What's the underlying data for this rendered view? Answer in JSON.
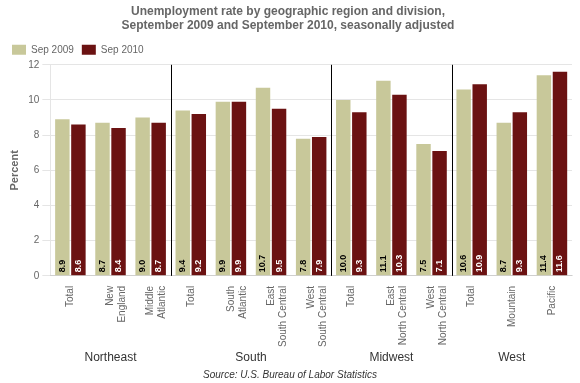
{
  "chart_data": {
    "type": "bar",
    "title": "Unemployment rate by geographic region and division,\nSeptember 2009 and September 2010, seasonally adjusted",
    "categories": [
      "Total",
      "New\nEngland",
      "Middle\nAtlantic",
      "Total",
      "South\nAtlantic",
      "East\nSouth Central",
      "West\nSouth Central",
      "Total",
      "East\nNorth Central",
      "West\nNorth Central",
      "Total",
      "Mountain",
      "Pacific"
    ],
    "series": [
      {
        "name": "Sep 2009",
        "color": "#C8C89A",
        "values": [
          8.9,
          8.7,
          9.0,
          9.4,
          9.9,
          10.7,
          7.8,
          10.0,
          11.1,
          7.5,
          10.6,
          8.7,
          11.4
        ],
        "value_labels": [
          "8.9",
          "8.7",
          "9.0",
          "9.4",
          "9.9",
          "10.7",
          "7.8",
          "10.0",
          "11.1",
          "7.5",
          "10.6",
          "8.7",
          "11.4"
        ]
      },
      {
        "name": "Sep 2010",
        "color": "#6B1212",
        "values": [
          8.6,
          8.4,
          8.7,
          9.2,
          9.9,
          9.5,
          7.9,
          9.3,
          10.3,
          7.1,
          10.9,
          9.3,
          11.6
        ],
        "value_labels": [
          "8.6",
          "8.4",
          "8.7",
          "9.2",
          "9.9",
          "9.5",
          "7.9",
          "9.3",
          "10.3",
          "7.1",
          "10.9",
          "9.3",
          "11.6"
        ]
      }
    ],
    "ylabel": "Percent",
    "ylim": [
      0,
      12
    ],
    "yticks": [
      0,
      2,
      4,
      6,
      8,
      10,
      12
    ],
    "grid": true,
    "legend": "upper left",
    "data_labels": true,
    "annotations": [
      "Northeast",
      "South",
      "Midwest",
      "West"
    ],
    "source": "Source: U.S. Bureau of Labor Statistics"
  }
}
